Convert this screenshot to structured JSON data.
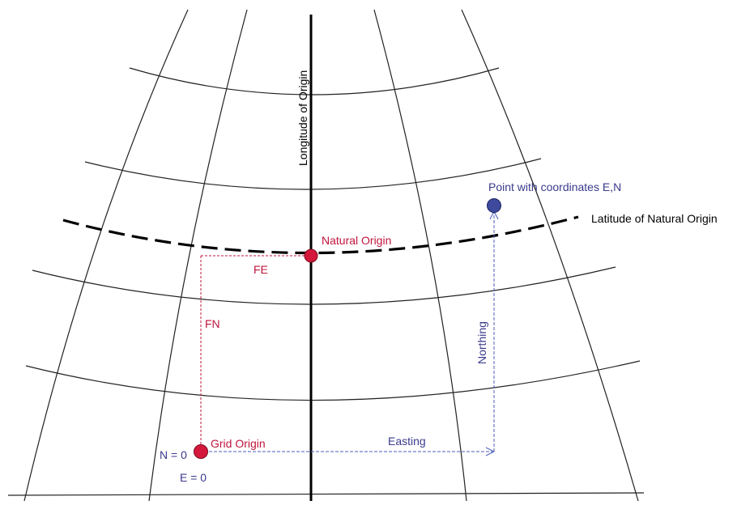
{
  "labels": {
    "longitude_of_origin": "Longitude  of Origin",
    "latitude_of_natural_origin": "Latitude of Natural Origin",
    "natural_origin": "Natural Origin",
    "point": "Point with coordinates E,N",
    "fe": "FE",
    "fn": "FN",
    "northing": "Northing",
    "easting": "Easting",
    "grid_origin": "Grid Origin",
    "n_zero": "N = 0",
    "e_zero": "E = 0"
  },
  "colors": {
    "graticule": "#222222",
    "central_meridian": "#000000",
    "red": "#c0143c",
    "blue": "#3a3a8c",
    "blue_fill": "#3d4a9e",
    "red_fill": "#d4183c"
  }
}
